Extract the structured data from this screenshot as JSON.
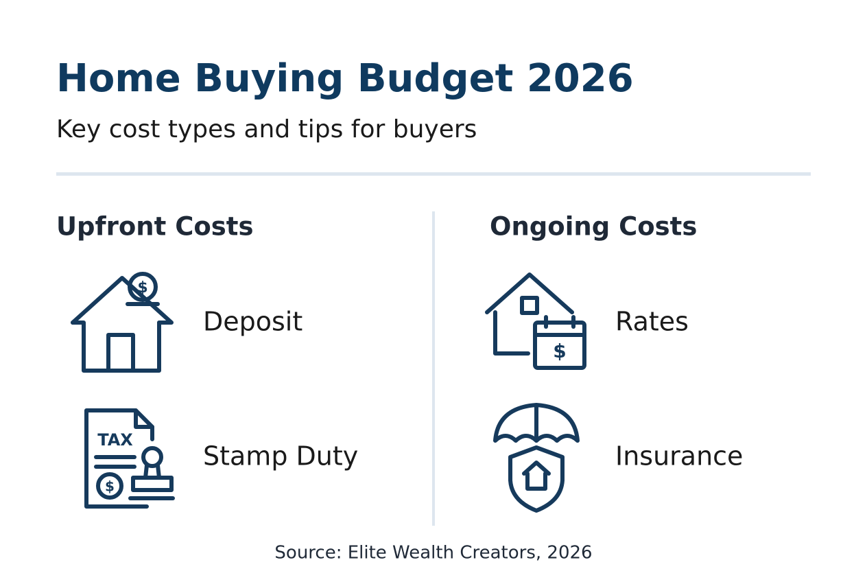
{
  "header": {
    "title": "Home Buying Budget 2026",
    "subtitle": "Key cost types and tips for buyers"
  },
  "columns": [
    {
      "heading": "Upfront Costs",
      "items": [
        {
          "label": "Deposit",
          "icon_text": "$"
        },
        {
          "label": "Stamp Duty",
          "icon_text": "TAX",
          "icon_symbol": "$"
        }
      ]
    },
    {
      "heading": "Ongoing Costs",
      "items": [
        {
          "label": "Rates",
          "icon_text": "$"
        },
        {
          "label": "Insurance"
        }
      ]
    }
  ],
  "footer": {
    "source": "Source: Elite Wealth Creators, 2026"
  }
}
